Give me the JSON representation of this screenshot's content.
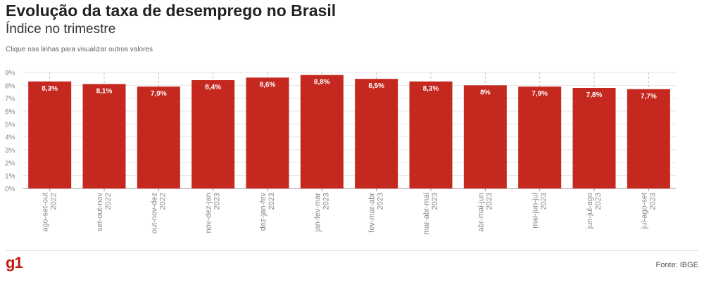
{
  "header": {
    "title": "Evolução da taxa de desemprego no Brasil",
    "subtitle": "Índice no trimestre",
    "hint": "Clique nas linhas para visualizar outros valores"
  },
  "footer": {
    "logo": "g1",
    "source": "Fonte: IBGE"
  },
  "colors": {
    "bar": "#c4281f",
    "grid": "#e6e6e6",
    "axis_text": "#888888",
    "brand": "#c4170c"
  },
  "chart_data": {
    "type": "bar",
    "title": "Evolução da taxa de desemprego no Brasil",
    "subtitle": "Índice no trimestre",
    "xlabel": "",
    "ylabel": "",
    "ylim": [
      0,
      9
    ],
    "y_ticks": [
      "0%",
      "1%",
      "2%",
      "3%",
      "4%",
      "5%",
      "6%",
      "7%",
      "8%",
      "9%"
    ],
    "grid": true,
    "categories": [
      {
        "period": "ago-set-out",
        "year": "2022"
      },
      {
        "period": "set-out-nov",
        "year": "2022"
      },
      {
        "period": "out-nov-dez",
        "year": "2022"
      },
      {
        "period": "nov-dez-jan",
        "year": "2023"
      },
      {
        "period": "dez-jan-fev",
        "year": "2023"
      },
      {
        "period": "jan-fev-mar",
        "year": "2023"
      },
      {
        "period": "fev-mar-abr",
        "year": "2023"
      },
      {
        "period": "mar-abr-mai",
        "year": "2023"
      },
      {
        "period": "abr-mai-jun",
        "year": "2023"
      },
      {
        "period": "mai-jun-jul",
        "year": "2023"
      },
      {
        "period": "jun-jul-ago",
        "year": "2023"
      },
      {
        "period": "jul-ago-set",
        "year": "2023"
      }
    ],
    "values": [
      8.3,
      8.1,
      7.9,
      8.4,
      8.6,
      8.8,
      8.5,
      8.3,
      8.0,
      7.9,
      7.8,
      7.7
    ],
    "data_labels": [
      "8,3%",
      "8,1%",
      "7,9%",
      "8,4%",
      "8,6%",
      "8,8%",
      "8,5%",
      "8,3%",
      "8%",
      "7,9%",
      "7,8%",
      "7,7%"
    ]
  }
}
